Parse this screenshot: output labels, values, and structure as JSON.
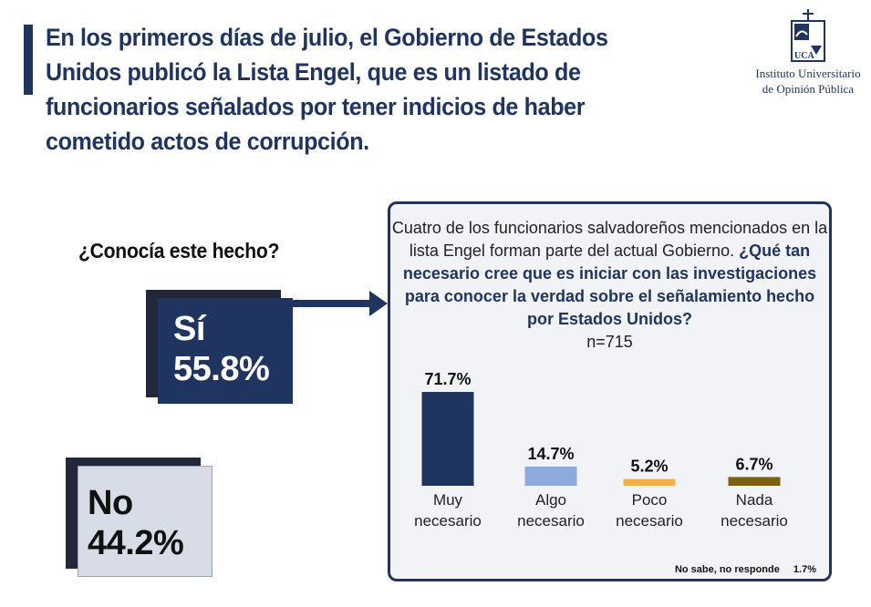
{
  "headline": "En los primeros días de julio, el Gobierno de Estados Unidos publicó la Lista Engel, que es un listado de funcionarios señalados por tener indicios de haber cometido actos de corrupción.",
  "logo": {
    "mark_text": "UCA",
    "line1": "Instituto Universitario",
    "line2": "de Opinión Pública",
    "icon": "uca-cross-logo-icon"
  },
  "question": "¿Conocía este hecho?",
  "answers": {
    "si": {
      "label": "Sí",
      "value": "55.8%"
    },
    "no": {
      "label": "No",
      "value": "44.2%"
    }
  },
  "panel": {
    "intro": "Cuatro de los funcionarios salvadoreños mencionados en la lista Engel forman parte del actual Gobierno.",
    "question_bold": "¿Qué tan necesario cree que es iniciar con las investigaciones para conocer la verdad sobre el señalamiento hecho por Estados Unidos?",
    "n": "n=715",
    "footnote_label": "No sabe, no responde",
    "footnote_value": "1.7%"
  },
  "colors": {
    "navy": "#1f3560",
    "light_blue": "#8eaadc",
    "orange": "#f2b04c",
    "brown": "#7d5f12"
  },
  "chart_data": {
    "type": "bar",
    "categories": [
      "Muy necesario",
      "Algo necesario",
      "Poco necesario",
      "Nada necesario"
    ],
    "category_lines": [
      [
        "Muy",
        "necesario"
      ],
      [
        "Algo",
        "necesario"
      ],
      [
        "Poco",
        "necesario"
      ],
      [
        "Nada",
        "necesario"
      ]
    ],
    "values": [
      71.7,
      14.7,
      5.2,
      6.7
    ],
    "value_labels": [
      "71.7%",
      "14.7%",
      "5.2%",
      "6.7%"
    ],
    "colors": [
      "#1f3560",
      "#8eaadc",
      "#f2b04c",
      "#7d5f12"
    ],
    "unit": "%",
    "ylim": [
      0,
      71.7
    ],
    "grid": false,
    "legend": "none"
  }
}
